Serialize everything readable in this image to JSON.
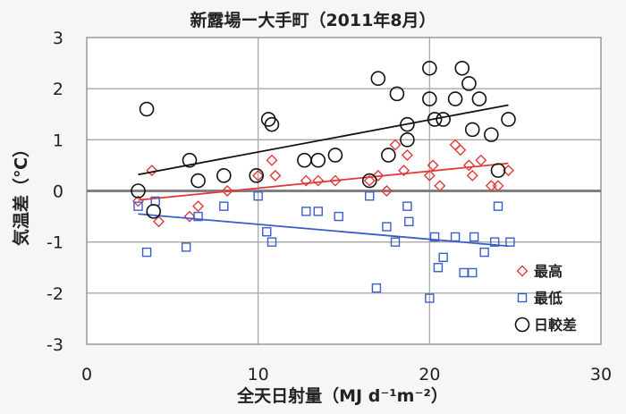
{
  "chart_data": {
    "type": "scatter",
    "title": "新露場ー大手町（2011年8月）",
    "xlabel": "全天日射量（MJ d⁻¹m⁻²）",
    "ylabel": "気温差（℃）",
    "xlim": [
      0,
      30
    ],
    "ylim": [
      -3,
      3
    ],
    "x_ticks": [
      "0",
      "10",
      "20",
      "30"
    ],
    "y_ticks": [
      "3",
      "2",
      "1",
      "0",
      "-1",
      "-2",
      "-3"
    ],
    "grid": true,
    "legend_position": "bottom-right",
    "series": [
      {
        "name": "最高",
        "color": "#e03a3a",
        "marker": "diamond",
        "points": [
          [
            3.0,
            -0.2
          ],
          [
            3.8,
            0.4
          ],
          [
            4.2,
            -0.6
          ],
          [
            6.0,
            -0.5
          ],
          [
            6.5,
            -0.3
          ],
          [
            8.2,
            0.0
          ],
          [
            10.0,
            0.3
          ],
          [
            10.8,
            0.6
          ],
          [
            11.0,
            0.3
          ],
          [
            12.8,
            0.2
          ],
          [
            13.5,
            0.2
          ],
          [
            14.5,
            0.2
          ],
          [
            16.5,
            0.2
          ],
          [
            17.0,
            0.3
          ],
          [
            17.5,
            0.0
          ],
          [
            18.0,
            0.9
          ],
          [
            18.5,
            0.4
          ],
          [
            18.7,
            0.7
          ],
          [
            20.0,
            0.3
          ],
          [
            20.2,
            0.5
          ],
          [
            20.6,
            0.1
          ],
          [
            21.5,
            0.9
          ],
          [
            21.8,
            0.8
          ],
          [
            22.3,
            0.5
          ],
          [
            22.5,
            0.3
          ],
          [
            23.0,
            0.6
          ],
          [
            23.6,
            0.1
          ],
          [
            24.0,
            0.1
          ],
          [
            24.6,
            0.4
          ]
        ],
        "trend": [
          [
            3.0,
            -0.18
          ],
          [
            24.6,
            0.54
          ]
        ]
      },
      {
        "name": "最低",
        "color": "#3a5ec8",
        "marker": "square",
        "points": [
          [
            3.0,
            -0.3
          ],
          [
            3.5,
            -1.2
          ],
          [
            4.0,
            -0.2
          ],
          [
            5.8,
            -1.1
          ],
          [
            6.5,
            -0.5
          ],
          [
            8.0,
            -0.3
          ],
          [
            10.0,
            -0.1
          ],
          [
            10.5,
            -0.8
          ],
          [
            10.8,
            -1.0
          ],
          [
            12.8,
            -0.4
          ],
          [
            13.5,
            -0.4
          ],
          [
            14.7,
            -0.5
          ],
          [
            16.5,
            -0.1
          ],
          [
            16.9,
            -1.9
          ],
          [
            17.5,
            -0.7
          ],
          [
            18.0,
            -1.0
          ],
          [
            18.7,
            -0.3
          ],
          [
            18.8,
            -0.6
          ],
          [
            20.0,
            -2.1
          ],
          [
            20.3,
            -0.9
          ],
          [
            20.5,
            -1.5
          ],
          [
            20.8,
            -1.3
          ],
          [
            21.5,
            -0.9
          ],
          [
            22.0,
            -1.6
          ],
          [
            22.5,
            -1.6
          ],
          [
            22.6,
            -0.9
          ],
          [
            23.2,
            -1.2
          ],
          [
            23.8,
            -1.0
          ],
          [
            24.0,
            -0.3
          ],
          [
            24.7,
            -1.0
          ]
        ],
        "trend": [
          [
            3.0,
            -0.45
          ],
          [
            24.6,
            -1.08
          ]
        ]
      },
      {
        "name": "日較差",
        "color": "#111111",
        "marker": "circle",
        "points": [
          [
            3.0,
            0.0
          ],
          [
            3.5,
            1.6
          ],
          [
            3.9,
            -0.4
          ],
          [
            6.0,
            0.6
          ],
          [
            6.5,
            0.2
          ],
          [
            8.0,
            0.3
          ],
          [
            9.9,
            0.3
          ],
          [
            10.6,
            1.4
          ],
          [
            10.8,
            1.3
          ],
          [
            12.7,
            0.6
          ],
          [
            13.5,
            0.6
          ],
          [
            14.5,
            0.7
          ],
          [
            16.5,
            0.2
          ],
          [
            17.0,
            2.2
          ],
          [
            17.6,
            0.7
          ],
          [
            18.1,
            1.9
          ],
          [
            18.7,
            1.0
          ],
          [
            18.7,
            1.3
          ],
          [
            20.0,
            2.4
          ],
          [
            20.0,
            1.8
          ],
          [
            20.3,
            1.4
          ],
          [
            20.8,
            1.4
          ],
          [
            21.5,
            1.8
          ],
          [
            21.9,
            2.4
          ],
          [
            22.3,
            2.1
          ],
          [
            22.5,
            1.2
          ],
          [
            22.9,
            1.8
          ],
          [
            23.6,
            1.1
          ],
          [
            24.0,
            0.4
          ],
          [
            24.6,
            1.4
          ]
        ],
        "trend": [
          [
            3.0,
            0.32
          ],
          [
            24.6,
            1.68
          ]
        ]
      }
    ]
  }
}
